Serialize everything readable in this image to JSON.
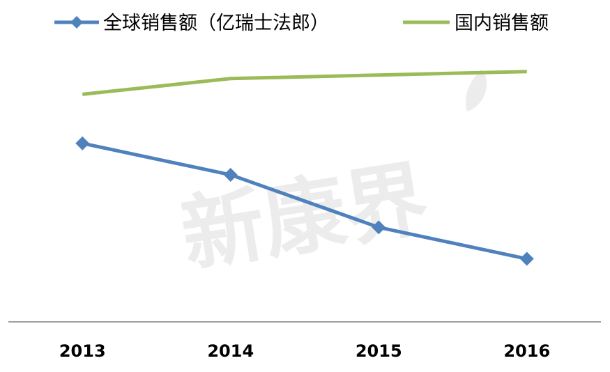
{
  "chart_data": {
    "type": "line",
    "categories": [
      "2013",
      "2014",
      "2015",
      "2016"
    ],
    "series": [
      {
        "name": "全球销售额（亿瑞士法郎）",
        "values": [
          51,
          42,
          27,
          18
        ],
        "color": "#4f81bd",
        "marker": "diamond"
      },
      {
        "name": "国内销售额",
        "values": [
          65,
          69.5,
          70.5,
          71.5
        ],
        "color": "#9bbb59",
        "marker": "none"
      }
    ],
    "title": "",
    "xlabel": "",
    "ylabel": "",
    "ylim": [
      0,
      80
    ],
    "y_axis_visible": false,
    "grid": false,
    "legend_position": "top"
  },
  "watermark": {
    "text": "新康界",
    "color": "#d9d9d9"
  }
}
